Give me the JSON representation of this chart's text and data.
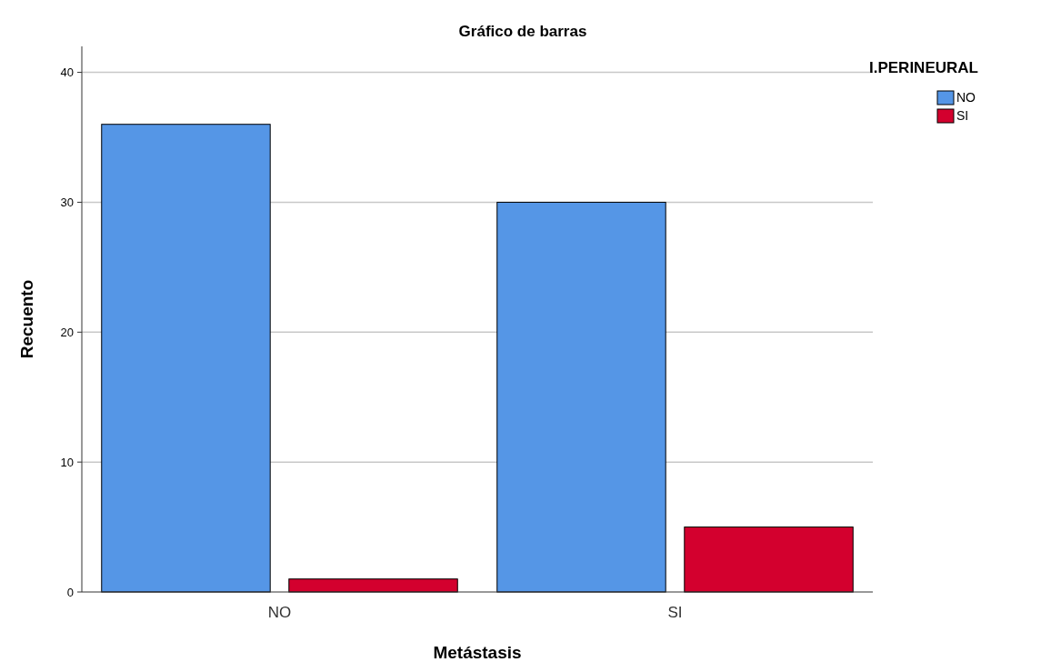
{
  "chart_data": {
    "type": "bar",
    "title": "Gráfico de barras",
    "xlabel": "Metástasis",
    "ylabel": "Recuento",
    "legend_title": "I.PERINEURAL",
    "categories": [
      "NO",
      "SI"
    ],
    "series": [
      {
        "name": "NO",
        "color": "#5596e6",
        "values": [
          36,
          30
        ]
      },
      {
        "name": "SI",
        "color": "#d3002e",
        "values": [
          1,
          5
        ]
      }
    ],
    "ylim": [
      0,
      42
    ],
    "yticks": [
      0,
      10,
      20,
      30,
      40
    ],
    "grid": "y",
    "legend": "top right"
  }
}
